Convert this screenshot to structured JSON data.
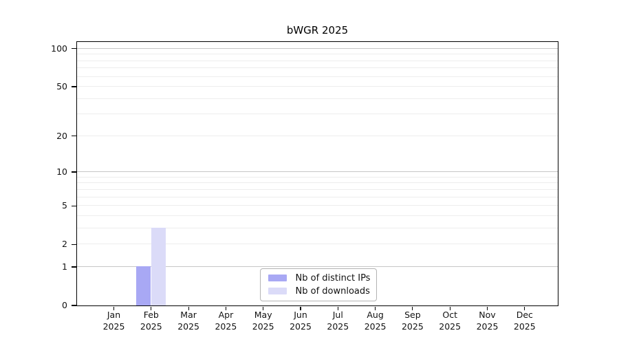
{
  "figure": {
    "title": "bWGR 2025"
  },
  "colors": {
    "background": "#ffffff",
    "axis": "#000000",
    "text": "#111111",
    "grid_minor": "#ededed",
    "grid_major": "#c6c6c6",
    "legend_border": "#b3b3b3",
    "bar_distinct_ips": "#a8a8f4",
    "bar_downloads": "#dbdbf8"
  },
  "chart_data": {
    "type": "bar",
    "title": "bWGR 2025",
    "categories": [
      "Jan",
      "Feb",
      "Mar",
      "Apr",
      "May",
      "Jun",
      "Jul",
      "Aug",
      "Sep",
      "Oct",
      "Nov",
      "Dec"
    ],
    "year_label": "2025",
    "series": [
      {
        "name": "Nb of distinct IPs",
        "color": "#a8a8f4",
        "values": [
          0,
          1,
          0,
          0,
          0,
          0,
          0,
          0,
          0,
          0,
          0,
          0
        ]
      },
      {
        "name": "Nb of downloads",
        "color": "#dbdbf8",
        "values": [
          0,
          3,
          0,
          0,
          0,
          0,
          0,
          0,
          0,
          0,
          0,
          0
        ]
      }
    ],
    "yscale": "log1p",
    "ylim": [
      0,
      113
    ],
    "yticks": [
      0,
      1,
      2,
      5,
      10,
      20,
      50,
      100
    ],
    "gridlines_minor": [
      2,
      3,
      4,
      5,
      6,
      7,
      8,
      9,
      20,
      30,
      40,
      50,
      60,
      70,
      80,
      90
    ],
    "gridlines_major": [
      1,
      10,
      100
    ],
    "grid": "horizontal",
    "legend_position": "bottom-center",
    "xlabel": "",
    "ylabel": ""
  }
}
